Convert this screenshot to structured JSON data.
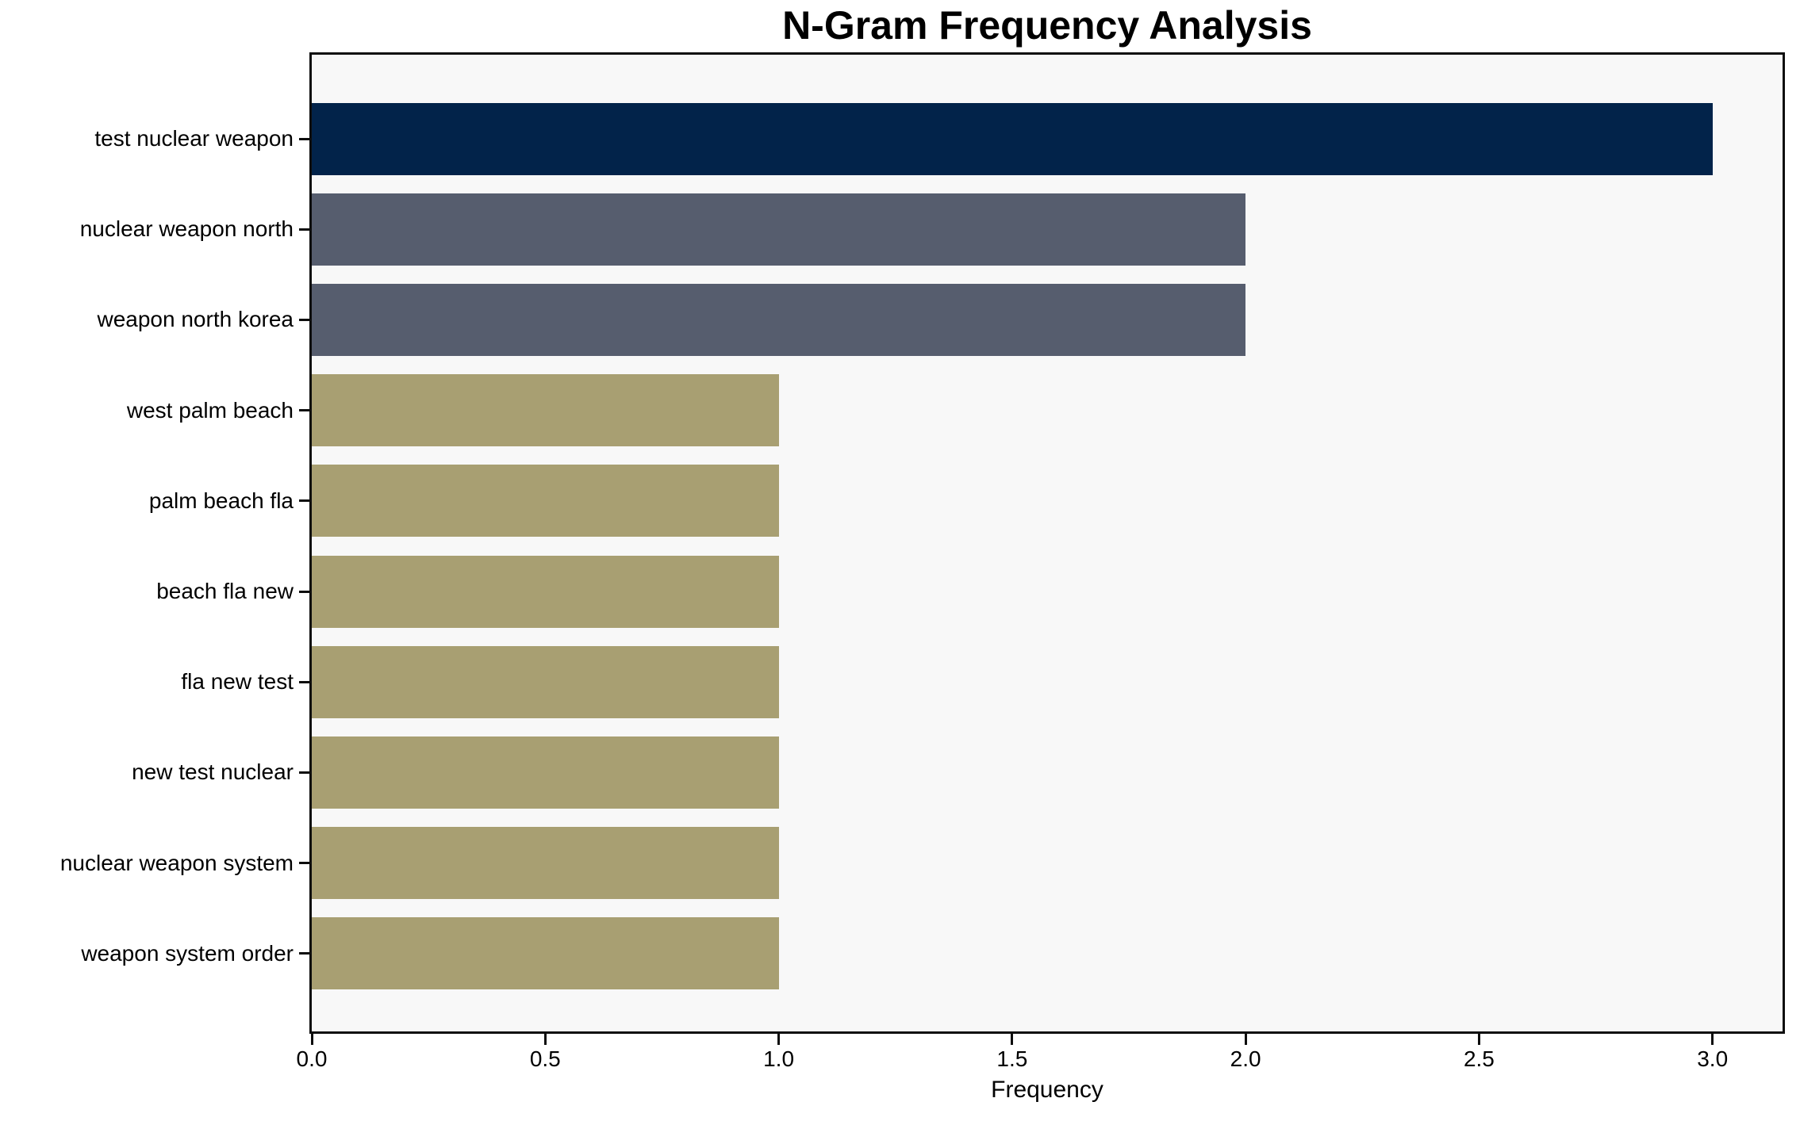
{
  "chart_data": {
    "type": "bar",
    "orientation": "horizontal",
    "title": "N-Gram Frequency Analysis",
    "xlabel": "Frequency",
    "ylabel": "",
    "categories": [
      "test nuclear weapon",
      "nuclear weapon north",
      "weapon north korea",
      "west palm beach",
      "palm beach fla",
      "beach fla new",
      "fla new test",
      "new test nuclear",
      "nuclear weapon system",
      "weapon system order"
    ],
    "values": [
      3,
      2,
      2,
      1,
      1,
      1,
      1,
      1,
      1,
      1
    ],
    "bar_colors": [
      "#02234a",
      "#565d6e",
      "#565d6e",
      "#a89f72",
      "#a89f72",
      "#a89f72",
      "#a89f72",
      "#a89f72",
      "#a89f72",
      "#a89f72"
    ],
    "xlim": [
      0,
      3.15
    ],
    "x_ticks": [
      0.0,
      0.5,
      1.0,
      1.5,
      2.0,
      2.5,
      3.0
    ],
    "x_tick_labels": [
      "0.0",
      "0.5",
      "1.0",
      "1.5",
      "2.0",
      "2.5",
      "3.0"
    ],
    "grid": false,
    "legend": null,
    "plot_bg": "#f8f8f8",
    "figure_bg": "#ffffff",
    "spine_color": "#0d0d0d",
    "text_color": "#000000"
  }
}
